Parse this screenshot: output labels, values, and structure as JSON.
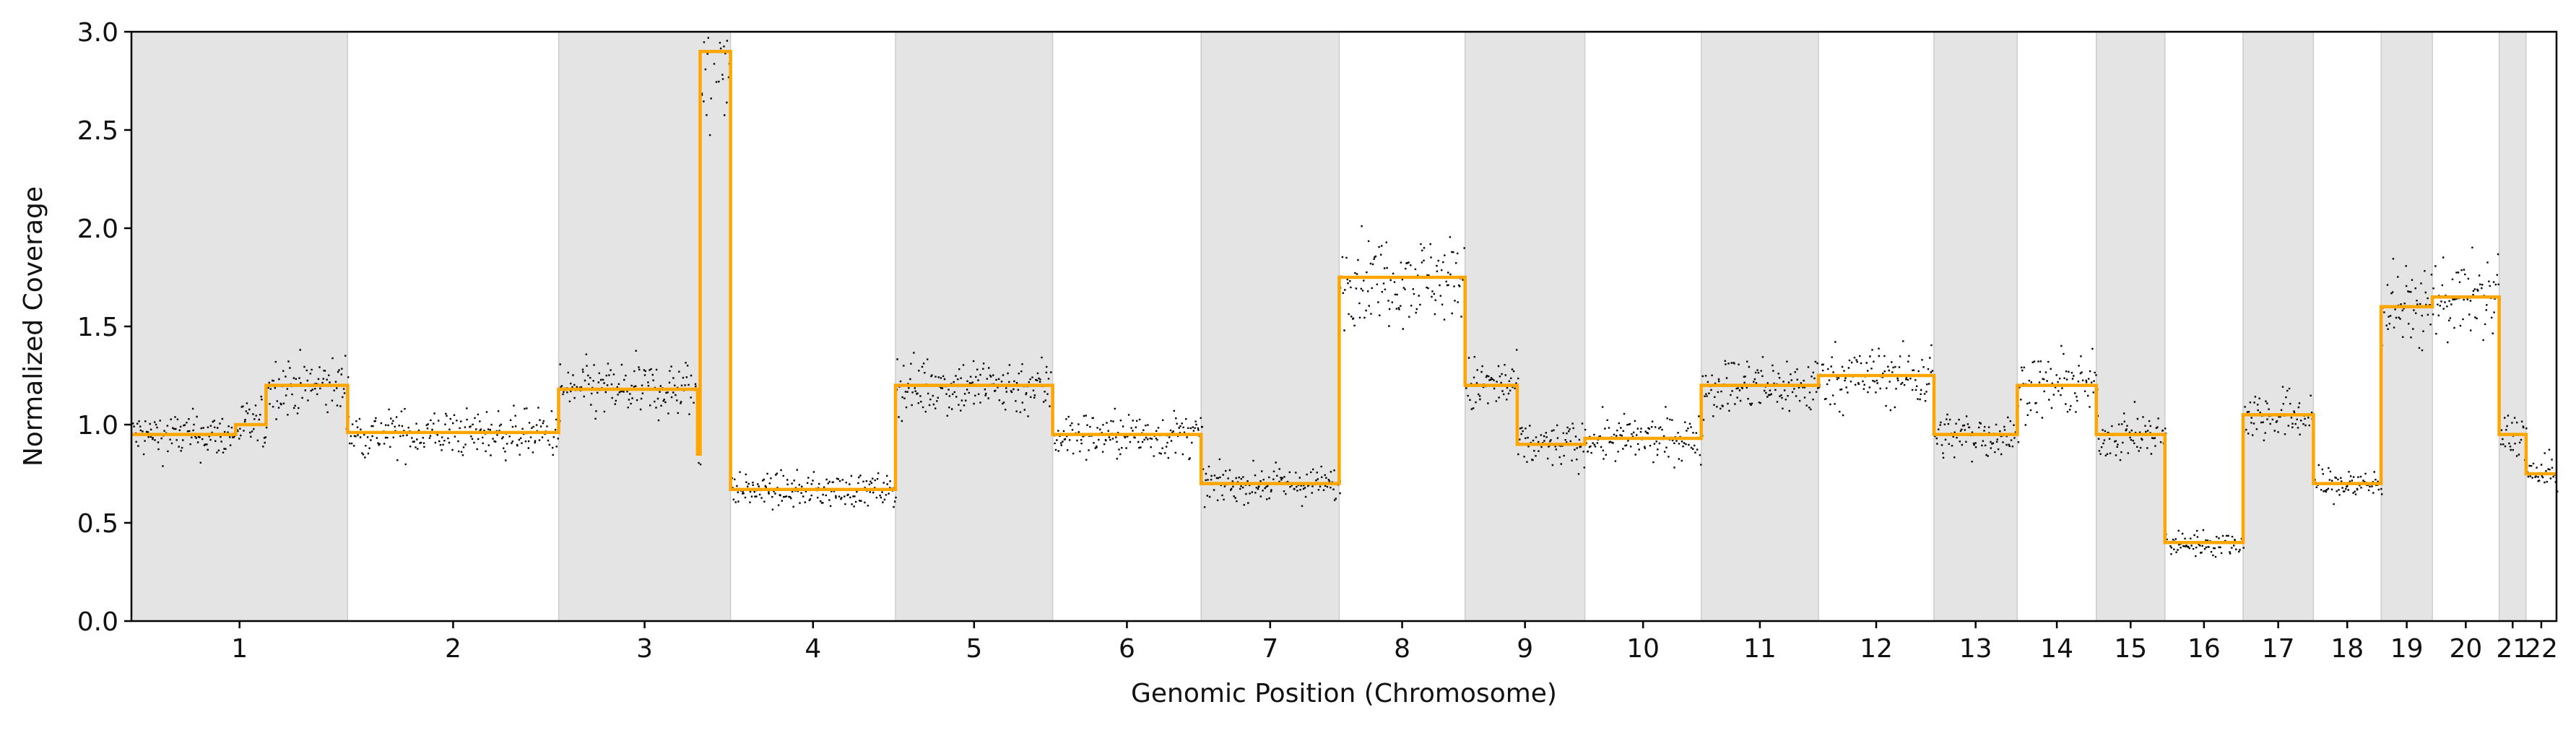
{
  "chart_data": {
    "type": "scatter",
    "title": "",
    "xlabel": "Genomic Position (Chromosome)",
    "ylabel": "Normalized Coverage",
    "ylim": [
      0.0,
      3.0
    ],
    "yticks": [
      "0.0",
      "0.5",
      "1.0",
      "1.5",
      "2.0",
      "2.5",
      "3.0"
    ],
    "grid": false,
    "legend": "none",
    "colors": {
      "points": "#000000",
      "segments": "#FFA500",
      "band": "#E4E4E4"
    },
    "chromosomes": [
      {
        "label": "1",
        "length": 249,
        "shaded": true
      },
      {
        "label": "2",
        "length": 243,
        "shaded": false
      },
      {
        "label": "3",
        "length": 198,
        "shaded": true
      },
      {
        "label": "4",
        "length": 190,
        "shaded": false
      },
      {
        "label": "5",
        "length": 181,
        "shaded": true
      },
      {
        "label": "6",
        "length": 171,
        "shaded": false
      },
      {
        "label": "7",
        "length": 159,
        "shaded": true
      },
      {
        "label": "8",
        "length": 145,
        "shaded": false
      },
      {
        "label": "9",
        "length": 138,
        "shaded": true
      },
      {
        "label": "10",
        "length": 134,
        "shaded": false
      },
      {
        "label": "11",
        "length": 135,
        "shaded": true
      },
      {
        "label": "12",
        "length": 133,
        "shaded": false
      },
      {
        "label": "13",
        "length": 96,
        "shaded": true
      },
      {
        "label": "14",
        "length": 91,
        "shaded": false
      },
      {
        "label": "15",
        "length": 79,
        "shaded": true
      },
      {
        "label": "16",
        "length": 90,
        "shaded": false
      },
      {
        "label": "17",
        "length": 81,
        "shaded": true
      },
      {
        "label": "18",
        "length": 78,
        "shaded": false
      },
      {
        "label": "19",
        "length": 59,
        "shaded": true
      },
      {
        "label": "20",
        "length": 77,
        "shaded": false
      },
      {
        "label": "21",
        "length": 31,
        "shaded": true
      },
      {
        "label": "22",
        "length": 35,
        "shaded": false
      }
    ],
    "segments": [
      {
        "chrom": "1",
        "start": 0,
        "end": 120,
        "value": 0.95
      },
      {
        "chrom": "1",
        "start": 120,
        "end": 155,
        "value": 1.0
      },
      {
        "chrom": "1",
        "start": 155,
        "end": 249,
        "value": 1.2
      },
      {
        "chrom": "2",
        "start": 0,
        "end": 243,
        "value": 0.96
      },
      {
        "chrom": "3",
        "start": 0,
        "end": 160,
        "value": 1.18
      },
      {
        "chrom": "3",
        "start": 160,
        "end": 163,
        "value": 0.85
      },
      {
        "chrom": "3",
        "start": 163,
        "end": 198,
        "value": 2.9
      },
      {
        "chrom": "4",
        "start": 0,
        "end": 190,
        "value": 0.67
      },
      {
        "chrom": "5",
        "start": 0,
        "end": 181,
        "value": 1.2
      },
      {
        "chrom": "6",
        "start": 0,
        "end": 171,
        "value": 0.95
      },
      {
        "chrom": "7",
        "start": 0,
        "end": 159,
        "value": 0.7
      },
      {
        "chrom": "8",
        "start": 0,
        "end": 145,
        "value": 1.75
      },
      {
        "chrom": "9",
        "start": 0,
        "end": 60,
        "value": 1.2
      },
      {
        "chrom": "9",
        "start": 60,
        "end": 138,
        "value": 0.9
      },
      {
        "chrom": "10",
        "start": 0,
        "end": 134,
        "value": 0.93
      },
      {
        "chrom": "11",
        "start": 0,
        "end": 135,
        "value": 1.2
      },
      {
        "chrom": "12",
        "start": 0,
        "end": 133,
        "value": 1.25
      },
      {
        "chrom": "13",
        "start": 0,
        "end": 96,
        "value": 0.95
      },
      {
        "chrom": "14",
        "start": 0,
        "end": 91,
        "value": 1.2
      },
      {
        "chrom": "15",
        "start": 0,
        "end": 79,
        "value": 0.95
      },
      {
        "chrom": "16",
        "start": 0,
        "end": 90,
        "value": 0.4
      },
      {
        "chrom": "17",
        "start": 0,
        "end": 81,
        "value": 1.05
      },
      {
        "chrom": "18",
        "start": 0,
        "end": 78,
        "value": 0.7
      },
      {
        "chrom": "19",
        "start": 0,
        "end": 59,
        "value": 1.6
      },
      {
        "chrom": "20",
        "start": 0,
        "end": 77,
        "value": 1.65
      },
      {
        "chrom": "21",
        "start": 0,
        "end": 31,
        "value": 0.95
      },
      {
        "chrom": "22",
        "start": 0,
        "end": 35,
        "value": 0.75
      }
    ]
  }
}
